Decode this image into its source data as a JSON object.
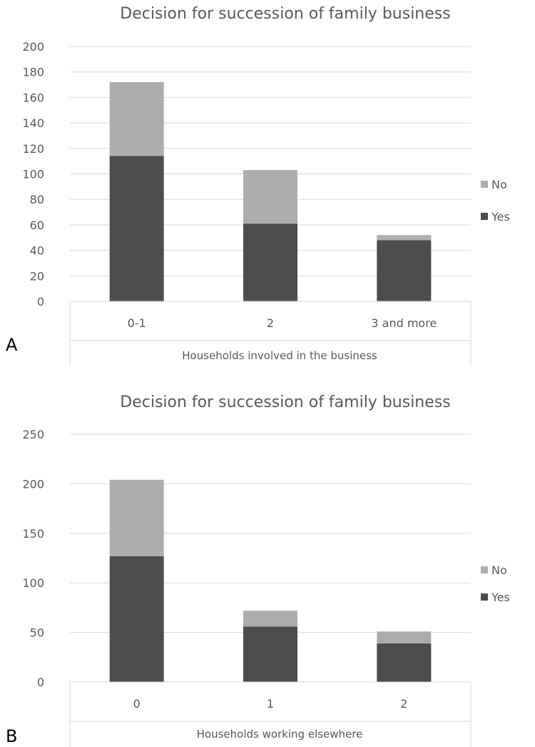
{
  "colors": {
    "yes": "#4d4d4d",
    "no": "#adadad",
    "grid": "#d9d9d9",
    "text": "#595959"
  },
  "chart_data": [
    {
      "panel": "A",
      "type": "bar",
      "stacked": true,
      "title": "Decision for succession of family business",
      "xlabel": "Households involved in the business",
      "ylabel": "",
      "categories": [
        "0-1",
        "2",
        "3 and more"
      ],
      "series": [
        {
          "name": "Yes",
          "values": [
            114,
            61,
            48
          ]
        },
        {
          "name": "No",
          "values": [
            58,
            42,
            4
          ]
        }
      ],
      "ylim": [
        0,
        200
      ],
      "yticks": [
        0,
        20,
        40,
        60,
        80,
        100,
        120,
        140,
        160,
        180,
        200
      ],
      "legend": [
        "No",
        "Yes"
      ],
      "legend_position": "right",
      "grid": true
    },
    {
      "panel": "B",
      "type": "bar",
      "stacked": true,
      "title": "Decision for succession of family business",
      "xlabel": "Households working elsewhere",
      "ylabel": "",
      "categories": [
        "0",
        "1",
        "2"
      ],
      "series": [
        {
          "name": "Yes",
          "values": [
            127,
            56,
            39
          ]
        },
        {
          "name": "No",
          "values": [
            77,
            16,
            12
          ]
        }
      ],
      "ylim": [
        0,
        250
      ],
      "yticks": [
        0,
        50,
        100,
        150,
        200,
        250
      ],
      "legend": [
        "No",
        "Yes"
      ],
      "legend_position": "right",
      "grid": true
    }
  ]
}
